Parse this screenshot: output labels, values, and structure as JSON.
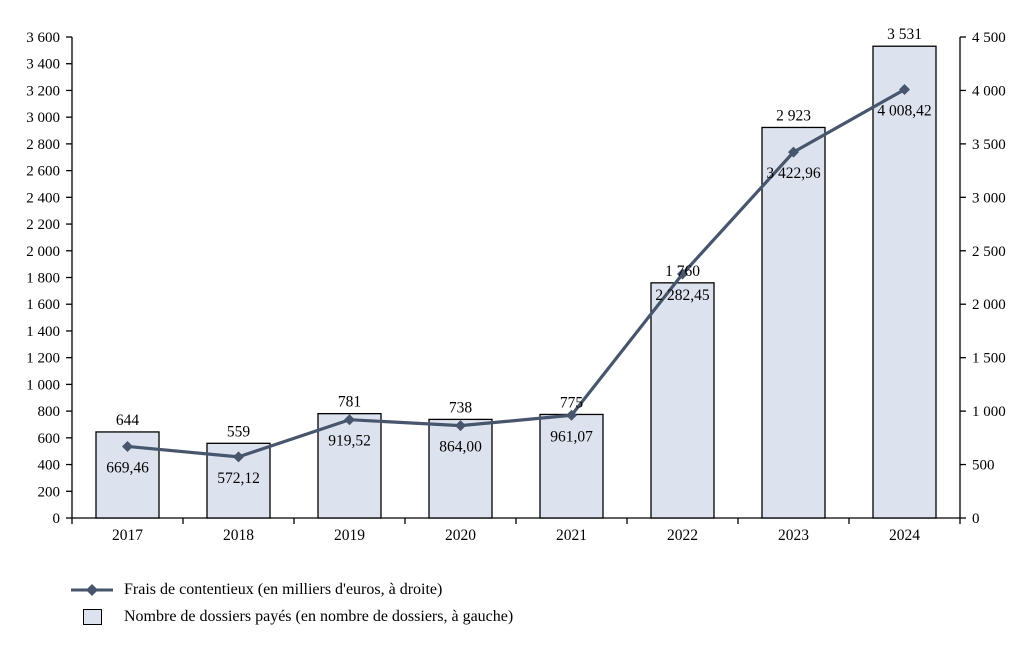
{
  "colors": {
    "bar_fill": "#dde3ee",
    "bar_border": "#000000",
    "line": "#47566c",
    "axis": "#000000",
    "text": "#000000",
    "background": "#ffffff"
  },
  "chart_data": {
    "type": "bar+line combo",
    "title": "",
    "categories": [
      "2017",
      "2018",
      "2019",
      "2020",
      "2021",
      "2022",
      "2023",
      "2024"
    ],
    "series": [
      {
        "name": "Frais de contentieux (en milliers d'euros, à droite)",
        "type": "line",
        "axis": "right",
        "marker": "diamond",
        "values": [
          669.46,
          572.12,
          919.52,
          864.0,
          961.07,
          2282.45,
          3422.96,
          4008.42
        ],
        "labels": [
          "669,46",
          "572,12",
          "919,52",
          "864,00",
          "961,07",
          "2 282,45",
          "3 422,96",
          "4 008,42"
        ]
      },
      {
        "name": "Nombre de dossiers payés (en nombre de dossiers, à gauche)",
        "type": "bar",
        "axis": "left",
        "values": [
          644,
          559,
          781,
          738,
          775,
          1760,
          2923,
          3531
        ],
        "labels": [
          "644",
          "559",
          "781",
          "738",
          "775",
          "1 760",
          "2 923",
          "3 531"
        ]
      }
    ],
    "left_axis": {
      "min": 0,
      "max": 3600,
      "step": 200,
      "tick_labels": [
        "0",
        "200",
        "400",
        "600",
        "800",
        "1 000",
        "1 200",
        "1 400",
        "1 600",
        "1 800",
        "2 000",
        "2 200",
        "2 400",
        "2 600",
        "2 800",
        "3 000",
        "3 200",
        "3 400",
        "3 600"
      ]
    },
    "right_axis": {
      "min": 0,
      "max": 4500,
      "step": 500,
      "tick_labels": [
        "0",
        "500",
        "1 000",
        "1 500",
        "2 000",
        "2 500",
        "3 000",
        "3 500",
        "4 000",
        "4 500"
      ]
    },
    "grid": false,
    "legend_position": "bottom-left"
  },
  "legend": {
    "line_label": "Frais de contentieux (en milliers d'euros, à droite)",
    "bar_label": "Nombre de dossiers payés (en nombre de dossiers, à gauche)"
  }
}
